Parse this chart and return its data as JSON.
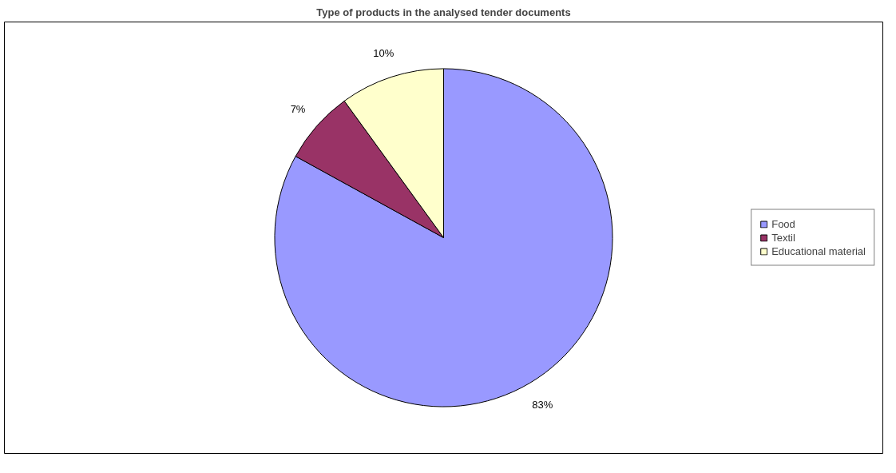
{
  "chart_data": {
    "type": "pie",
    "title": "Type of products in the analysed tender documents",
    "categories": [
      "Food",
      "Textil",
      "Educational material"
    ],
    "values": [
      83,
      7,
      10
    ],
    "colors": [
      "#9999ff",
      "#993366",
      "#ffffcc"
    ],
    "value_labels": [
      "83%",
      "7%",
      "10%"
    ],
    "legend": "right"
  }
}
